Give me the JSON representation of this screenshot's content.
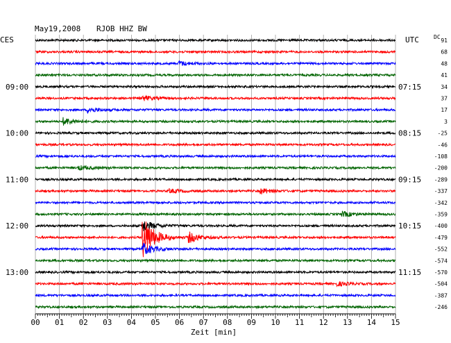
{
  "header": {
    "date": "May19,2008",
    "station": "RJOB HHZ BW",
    "left_zone": "CES",
    "right_zone": "UTC",
    "dc_label": "DC"
  },
  "x_axis": {
    "label": "Zeit [min]",
    "ticks": [
      "00",
      "01",
      "02",
      "03",
      "04",
      "05",
      "06",
      "07",
      "08",
      "09",
      "10",
      "11",
      "12",
      "13",
      "14",
      "15"
    ],
    "range": [
      0,
      15
    ]
  },
  "left_time_labels": [
    {
      "row": 4,
      "text": "09:00"
    },
    {
      "row": 8,
      "text": "10:00"
    },
    {
      "row": 12,
      "text": "11:00"
    },
    {
      "row": 16,
      "text": "12:00"
    },
    {
      "row": 20,
      "text": "13:00"
    }
  ],
  "right_time_labels": [
    {
      "row": 4,
      "text": "07:15"
    },
    {
      "row": 8,
      "text": "08:15"
    },
    {
      "row": 12,
      "text": "09:15"
    },
    {
      "row": 16,
      "text": "10:15"
    },
    {
      "row": 20,
      "text": "11:15"
    }
  ],
  "dc_offsets": [
    "91",
    "68",
    "48",
    "41",
    "34",
    "37",
    "17",
    "3",
    "-25",
    "-46",
    "-108",
    "-200",
    "-289",
    "-337",
    "-342",
    "-359",
    "-400",
    "-479",
    "-552",
    "-574",
    "-570",
    "-504",
    "-387",
    "-246"
  ],
  "colors": {
    "trace_cycle": [
      "#000000",
      "#ff0000",
      "#0000ff",
      "#006400"
    ],
    "grid": "#9e9e9e",
    "text": "#000000"
  },
  "chart_data": {
    "type": "line",
    "title": "May19,2008 RJOB HHZ BW",
    "xlabel": "Zeit [min]",
    "ylabel": "",
    "xlim": [
      0,
      15
    ],
    "rows": 24,
    "minutes_per_row": 15,
    "grid": true,
    "noise_amplitude": 1.5,
    "events": [
      {
        "row": 2,
        "minute": 6.0,
        "amp": 3
      },
      {
        "row": 5,
        "minute": 4.5,
        "amp": 3
      },
      {
        "row": 6,
        "minute": 2.2,
        "amp": 3.5
      },
      {
        "row": 7,
        "minute": 1.2,
        "amp": 5
      },
      {
        "row": 11,
        "minute": 1.8,
        "amp": 3
      },
      {
        "row": 13,
        "minute": 5.6,
        "amp": 2.5
      },
      {
        "row": 13,
        "minute": 9.4,
        "amp": 3.5
      },
      {
        "row": 15,
        "minute": 12.8,
        "amp": 3.5
      },
      {
        "row": 17,
        "minute": 4.5,
        "amp": 30
      },
      {
        "row": 17,
        "minute": 6.4,
        "amp": 7
      },
      {
        "row": 18,
        "minute": 4.5,
        "amp": 8
      },
      {
        "row": 16,
        "minute": 4.5,
        "amp": 8
      },
      {
        "row": 21,
        "minute": 12.6,
        "amp": 2.5
      }
    ]
  }
}
